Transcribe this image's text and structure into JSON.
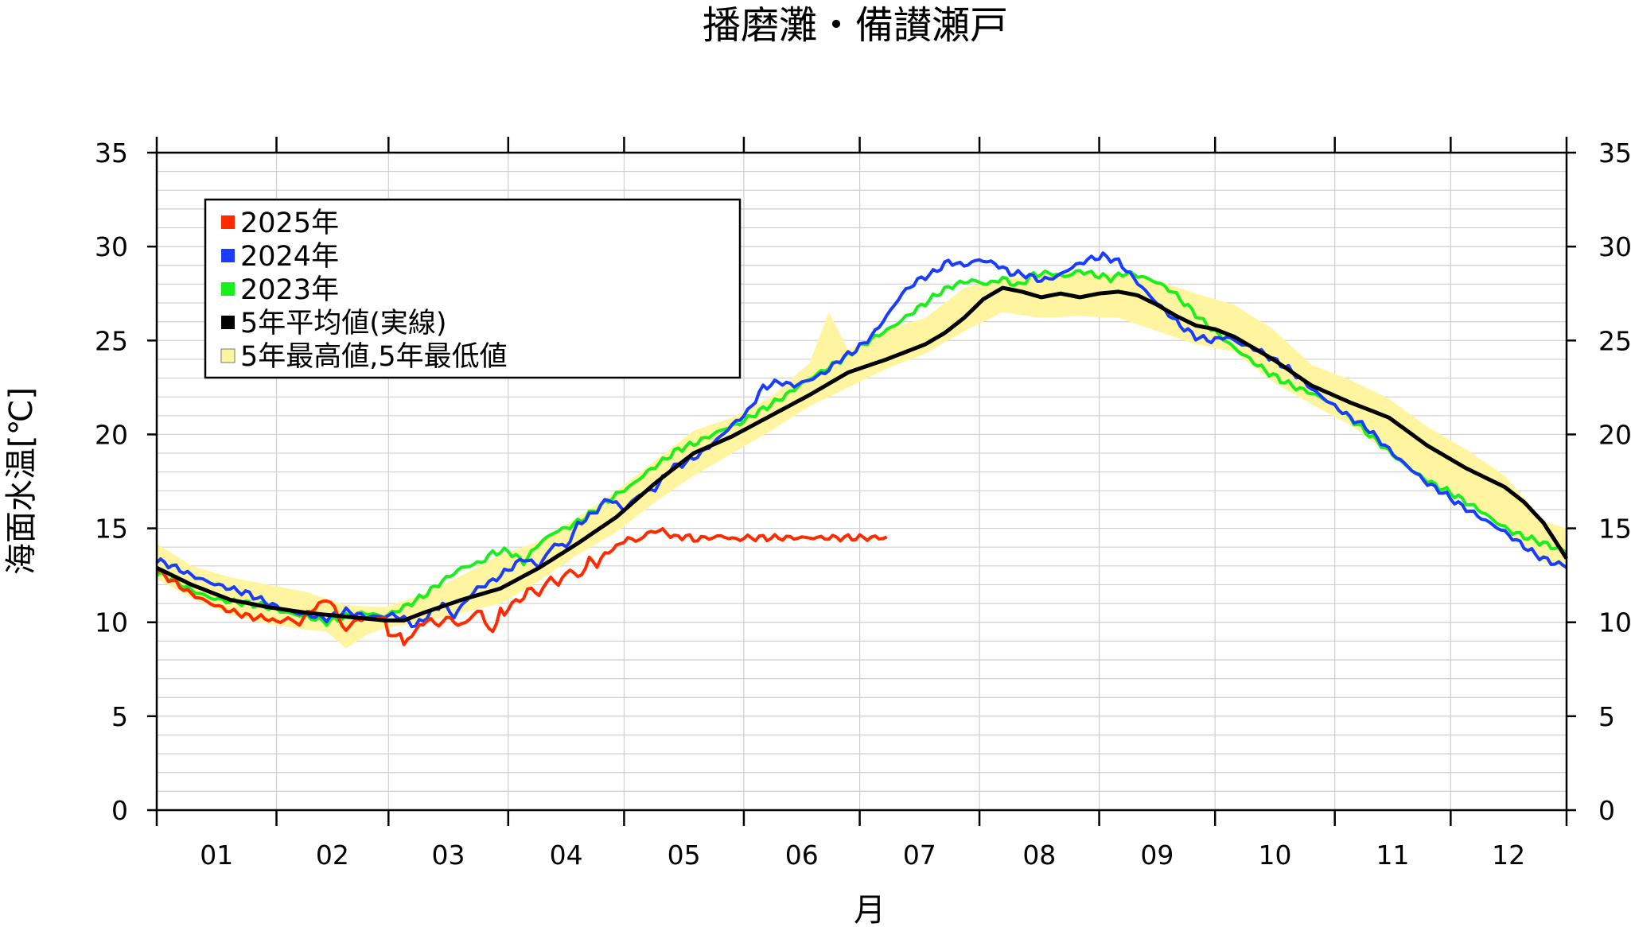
{
  "chart_data": {
    "type": "line",
    "title": "播磨灘・備讃瀬戸",
    "xlabel": "月",
    "ylabel": "海面水温[℃]",
    "xlim": [
      1,
      366
    ],
    "ylim": [
      0,
      35
    ],
    "yticks": [
      0,
      5,
      10,
      15,
      20,
      25,
      30,
      35
    ],
    "month_labels": [
      "01",
      "02",
      "03",
      "04",
      "05",
      "06",
      "07",
      "08",
      "09",
      "10",
      "11",
      "12"
    ],
    "month_starts": [
      1,
      32,
      61,
      92,
      122,
      153,
      183,
      214,
      245,
      275,
      306,
      336,
      366
    ],
    "grid": true,
    "legend_position": "top-left",
    "colors": {
      "2025": "#ff2a00",
      "2024": "#1a3cff",
      "2023": "#18ef1c",
      "avg": "#000000",
      "band": "#fff5a0"
    },
    "legend": [
      {
        "key": "2025",
        "label": "2025年"
      },
      {
        "key": "2024",
        "label": "2024年"
      },
      {
        "key": "2023",
        "label": "2023年"
      },
      {
        "key": "avg",
        "label": "5年平均値(実線)"
      },
      {
        "key": "band",
        "label": "5年最高値,5年最低値"
      }
    ],
    "series": [
      {
        "name": "2025年",
        "key": "2025",
        "x": [
          1,
          5,
          10,
          15,
          20,
          25,
          30,
          32,
          35,
          38,
          40,
          43,
          45,
          48,
          50,
          52,
          54,
          55,
          57,
          60,
          61,
          62,
          64,
          65,
          67,
          69,
          71,
          73,
          75,
          77,
          79,
          81,
          83,
          85,
          87,
          88,
          90,
          91,
          93,
          95,
          97,
          100,
          103,
          105,
          108,
          110,
          113,
          115,
          118,
          120,
          123,
          125,
          128,
          130,
          133,
          135,
          138,
          140,
          143,
          145,
          147,
          149,
          151,
          153,
          155,
          158,
          160,
          163,
          165,
          168,
          170,
          173,
          175,
          178,
          180,
          183,
          185,
          188,
          190
        ],
        "y": [
          12.8,
          12.2,
          11.5,
          11.0,
          10.6,
          10.3,
          10.2,
          10.0,
          10.2,
          9.9,
          10.5,
          10.9,
          11.3,
          10.4,
          9.4,
          10.2,
          10.0,
          10.3,
          10.1,
          10.3,
          9.3,
          9.2,
          9.5,
          8.7,
          9.4,
          9.7,
          10.2,
          9.9,
          10.0,
          10.3,
          9.8,
          10.0,
          10.4,
          10.6,
          9.6,
          9.4,
          10.8,
          10.2,
          11.2,
          11.0,
          11.8,
          11.5,
          12.4,
          12.0,
          12.9,
          12.3,
          13.3,
          13.1,
          13.8,
          14.0,
          14.5,
          14.3,
          14.7,
          14.9,
          14.8,
          14.5,
          14.6,
          14.4,
          14.5,
          14.5,
          14.6,
          14.5,
          14.4,
          14.5,
          14.5,
          14.5,
          14.5,
          14.5,
          14.5,
          14.5,
          14.5,
          14.5,
          14.5,
          14.5,
          14.5,
          14.5,
          14.5,
          14.5,
          14.5
        ]
      },
      {
        "name": "2024年",
        "key": "2024",
        "x": [
          1,
          5,
          10,
          15,
          20,
          25,
          30,
          35,
          40,
          45,
          50,
          55,
          60,
          62,
          65,
          68,
          72,
          75,
          78,
          80,
          84,
          88,
          92,
          96,
          100,
          104,
          107,
          110,
          114,
          118,
          122,
          126,
          130,
          134,
          138,
          142,
          146,
          150,
          154,
          158,
          162,
          166,
          170,
          174,
          178,
          182,
          186,
          190,
          194,
          198,
          202,
          206,
          210,
          214,
          218,
          222,
          226,
          230,
          234,
          238,
          242,
          246,
          250,
          254,
          258,
          262,
          266,
          270,
          274,
          278,
          282,
          286,
          290,
          294,
          298,
          302,
          306,
          310,
          314,
          318,
          322,
          326,
          330,
          334,
          338,
          342,
          346,
          350,
          354,
          358,
          362,
          366
        ],
        "y": [
          13.3,
          13.0,
          12.5,
          12.1,
          11.8,
          11.5,
          11.0,
          10.6,
          10.4,
          10.2,
          10.6,
          10.3,
          10.3,
          10.4,
          10.2,
          9.8,
          10.5,
          11.0,
          10.3,
          10.9,
          11.8,
          12.2,
          12.8,
          13.4,
          13.0,
          14.2,
          14.0,
          15.2,
          15.8,
          16.6,
          16.0,
          16.8,
          17.1,
          18.2,
          18.5,
          19.0,
          19.7,
          20.5,
          21.2,
          22.5,
          22.8,
          22.6,
          22.9,
          23.3,
          24.0,
          24.5,
          25.2,
          26.3,
          27.5,
          28.2,
          28.6,
          29.2,
          29.0,
          29.3,
          29.1,
          28.6,
          28.5,
          28.2,
          28.4,
          28.9,
          29.3,
          29.5,
          29.2,
          28.3,
          27.4,
          26.6,
          25.8,
          25.2,
          25.0,
          25.2,
          24.8,
          24.5,
          24.0,
          23.5,
          22.8,
          22.1,
          21.5,
          20.9,
          20.4,
          19.6,
          18.8,
          18.1,
          17.4,
          16.9,
          16.3,
          15.8,
          15.3,
          14.8,
          14.2,
          13.6,
          13.2,
          13.0
        ]
      },
      {
        "name": "2023年",
        "key": "2023",
        "x": [
          1,
          5,
          10,
          15,
          20,
          25,
          30,
          35,
          40,
          45,
          50,
          55,
          60,
          65,
          70,
          75,
          80,
          85,
          88,
          92,
          96,
          100,
          104,
          108,
          112,
          116,
          120,
          124,
          128,
          132,
          136,
          140,
          144,
          148,
          152,
          156,
          160,
          164,
          168,
          172,
          176,
          180,
          184,
          188,
          192,
          196,
          200,
          204,
          208,
          212,
          216,
          220,
          224,
          228,
          232,
          236,
          240,
          244,
          248,
          252,
          256,
          260,
          264,
          268,
          272,
          276,
          280,
          284,
          288,
          292,
          296,
          300,
          304,
          308,
          312,
          316,
          320,
          324,
          328,
          332,
          336,
          340,
          344,
          348,
          352,
          356,
          360,
          364,
          366
        ],
        "y": [
          12.6,
          12.3,
          11.7,
          11.3,
          11.1,
          11.0,
          10.8,
          10.5,
          10.3,
          10.0,
          10.3,
          10.5,
          10.3,
          10.8,
          11.4,
          12.2,
          12.9,
          13.2,
          13.7,
          13.8,
          13.2,
          14.2,
          14.8,
          15.1,
          15.6,
          16.2,
          16.8,
          17.3,
          18.0,
          18.6,
          19.2,
          19.5,
          19.9,
          20.3,
          20.6,
          21.1,
          21.6,
          22.1,
          22.7,
          23.2,
          23.7,
          24.2,
          24.8,
          25.3,
          25.8,
          26.4,
          27.0,
          27.6,
          28.0,
          28.2,
          28.0,
          28.3,
          27.9,
          28.5,
          28.6,
          28.4,
          28.7,
          28.5,
          28.3,
          28.6,
          28.4,
          28.1,
          27.6,
          26.8,
          26.0,
          25.3,
          24.6,
          24.0,
          23.4,
          22.9,
          22.5,
          22.2,
          21.8,
          21.2,
          20.5,
          19.8,
          19.1,
          18.4,
          17.8,
          17.3,
          16.9,
          16.4,
          15.9,
          15.3,
          14.8,
          14.5,
          14.2,
          13.9,
          13.8
        ]
      },
      {
        "name": "5年平均値(実線)",
        "key": "avg",
        "x": [
          1,
          10,
          20,
          30,
          40,
          50,
          60,
          65,
          70,
          80,
          90,
          100,
          110,
          120,
          130,
          140,
          150,
          160,
          170,
          180,
          190,
          200,
          205,
          210,
          215,
          220,
          225,
          230,
          235,
          240,
          245,
          250,
          255,
          260,
          265,
          270,
          275,
          280,
          290,
          300,
          310,
          320,
          330,
          340,
          350,
          355,
          360,
          366
        ],
        "y": [
          12.9,
          12.0,
          11.2,
          10.8,
          10.5,
          10.3,
          10.1,
          10.1,
          10.5,
          11.2,
          11.8,
          12.9,
          14.2,
          15.6,
          17.4,
          19.0,
          19.9,
          21.0,
          22.1,
          23.3,
          24.0,
          24.8,
          25.4,
          26.2,
          27.2,
          27.8,
          27.6,
          27.3,
          27.5,
          27.3,
          27.5,
          27.6,
          27.4,
          26.9,
          26.3,
          25.8,
          25.6,
          25.2,
          24.0,
          22.6,
          21.7,
          20.9,
          19.4,
          18.2,
          17.2,
          16.4,
          15.3,
          13.4
        ]
      },
      {
        "name": "5年最高値",
        "key": "band_upper",
        "x": [
          1,
          10,
          20,
          30,
          40,
          50,
          60,
          70,
          80,
          90,
          100,
          110,
          120,
          130,
          140,
          150,
          160,
          170,
          175,
          180,
          190,
          200,
          210,
          220,
          230,
          240,
          250,
          260,
          270,
          280,
          290,
          300,
          310,
          320,
          330,
          340,
          350,
          360,
          366
        ],
        "y": [
          14.2,
          13.0,
          12.4,
          12.0,
          11.6,
          10.9,
          10.8,
          11.5,
          12.5,
          13.6,
          14.3,
          15.6,
          17.0,
          18.6,
          20.2,
          20.9,
          22.0,
          23.8,
          26.5,
          24.5,
          25.6,
          26.2,
          27.8,
          28.3,
          28.5,
          28.7,
          28.5,
          28.2,
          27.5,
          26.9,
          25.6,
          23.7,
          22.9,
          21.9,
          20.4,
          19.2,
          17.8,
          15.4,
          15.0
        ]
      },
      {
        "name": "5年最低値",
        "key": "band_lower",
        "x": [
          1,
          10,
          20,
          30,
          40,
          45,
          50,
          55,
          60,
          70,
          80,
          90,
          100,
          110,
          120,
          130,
          140,
          150,
          160,
          170,
          180,
          190,
          200,
          210,
          220,
          230,
          240,
          250,
          260,
          270,
          280,
          290,
          300,
          310,
          320,
          330,
          340,
          350,
          360,
          366
        ],
        "y": [
          12.3,
          11.3,
          10.4,
          9.9,
          9.6,
          9.5,
          8.6,
          9.3,
          9.7,
          10.0,
          10.5,
          11.0,
          12.2,
          13.6,
          14.8,
          16.4,
          17.8,
          19.0,
          20.2,
          21.5,
          22.5,
          23.5,
          24.3,
          25.5,
          26.5,
          26.2,
          26.3,
          26.2,
          25.5,
          24.8,
          24.4,
          22.8,
          21.6,
          20.5,
          19.0,
          17.6,
          16.5,
          15.0,
          13.2,
          12.8
        ]
      }
    ]
  }
}
